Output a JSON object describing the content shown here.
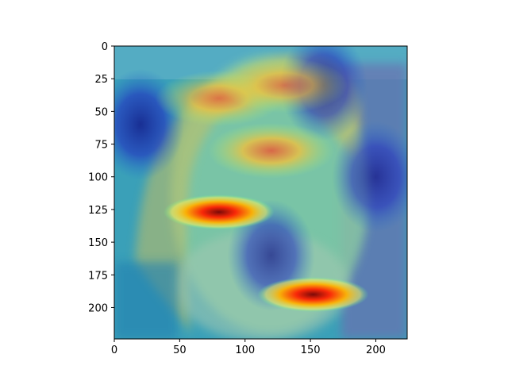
{
  "chart_data": {
    "type": "heatmap",
    "title": "",
    "xlabel": "",
    "ylabel": "",
    "xlim": [
      0,
      224
    ],
    "ylim": [
      224,
      0
    ],
    "xticks": [
      0,
      50,
      100,
      150,
      200
    ],
    "yticks": [
      0,
      25,
      50,
      75,
      100,
      125,
      150,
      175,
      200
    ],
    "colormap": "jet",
    "background_image": "photo of a bearded man's face with a saliency heatmap overlay",
    "hotspots": [
      {
        "x": 80,
        "y": 127,
        "level": 0.9
      },
      {
        "x": 152,
        "y": 190,
        "level": 1.0
      },
      {
        "x": 120,
        "y": 80,
        "level": 0.7
      },
      {
        "x": 80,
        "y": 40,
        "level": 0.6
      },
      {
        "x": 130,
        "y": 30,
        "level": 0.55
      }
    ],
    "coldspots": [
      {
        "x": 20,
        "y": 60,
        "level": 0.05
      },
      {
        "x": 160,
        "y": 30,
        "level": 0.1
      },
      {
        "x": 120,
        "y": 160,
        "level": 0.15
      },
      {
        "x": 200,
        "y": 100,
        "level": 0.15
      }
    ]
  }
}
